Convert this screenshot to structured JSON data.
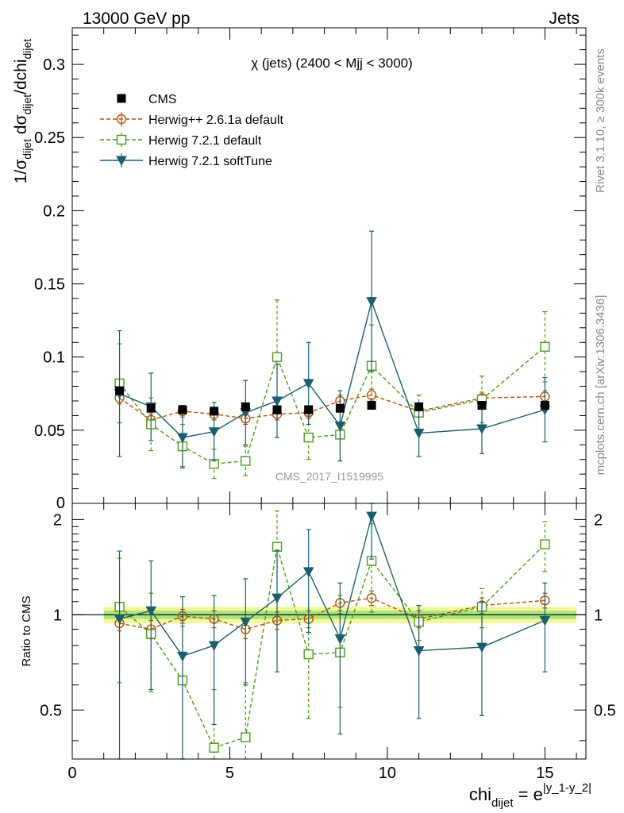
{
  "header": {
    "left": "13000 GeV pp",
    "right": "Jets"
  },
  "side_labels": {
    "rivet": "Rivet 3.1.10, ≥ 300k events",
    "mcplots": "mcplots.cern.ch [arXiv:1306.3436]"
  },
  "chart_data": {
    "type": "line",
    "title": "χ (jets) (2400 < Mjj < 3000)",
    "watermark": "CMS_2017_I1519995",
    "ylabel": {
      "pre": "1/σ",
      "sub1": "dijet",
      "mid": " dσ",
      "sub2": "dijet",
      "post": "/dchi",
      "sub3": "dijet"
    },
    "xlabel": {
      "base": "chi",
      "sub": "dijet",
      "eq": " = e",
      "sup": "|y_1-y_2|"
    },
    "ratio_ylabel": "Ratio to CMS",
    "xlim": [
      0,
      16.3
    ],
    "ylim": [
      0,
      0.325
    ],
    "ratio_ylim": [
      0.35,
      2.25
    ],
    "x_ticks": [
      0,
      5,
      10,
      15
    ],
    "y_ticks": [
      0.05,
      0.1,
      0.15,
      0.2,
      0.25,
      0.3
    ],
    "y_tick_labels": [
      "0.05",
      "0.1",
      "0.15",
      "0.2",
      "0.25",
      "0.3"
    ],
    "y_zero_label": "0",
    "ratio_ticks": [
      0.5,
      1,
      2
    ],
    "ratio_tick_labels": [
      "0.5",
      "1",
      "2"
    ],
    "x": [
      1.5,
      2.5,
      3.5,
      4.5,
      5.5,
      6.5,
      7.5,
      8.5,
      9.5,
      11,
      13,
      15
    ],
    "bins": [
      [
        1,
        2
      ],
      [
        2,
        3
      ],
      [
        3,
        4
      ],
      [
        4,
        5
      ],
      [
        5,
        6
      ],
      [
        6,
        7
      ],
      [
        7,
        8
      ],
      [
        8,
        9
      ],
      [
        9,
        10
      ],
      [
        10,
        12
      ],
      [
        12,
        14
      ],
      [
        14,
        16
      ]
    ],
    "cms": {
      "name": "CMS",
      "values": [
        0.077,
        0.065,
        0.064,
        0.063,
        0.066,
        0.064,
        0.064,
        0.065,
        0.067,
        0.066,
        0.067,
        0.067
      ],
      "err": [
        0.003,
        0.003,
        0.003,
        0.003,
        0.003,
        0.003,
        0.003,
        0.003,
        0.003,
        0.003,
        0.003,
        0.003
      ]
    },
    "band": {
      "inner": 0.03,
      "outer": 0.06
    },
    "series": [
      {
        "name": "Herwig++ 2.6.1a default",
        "color": "#b45309",
        "marker": "circle",
        "dashed": true,
        "values": [
          0.072,
          0.057,
          0.063,
          0.061,
          0.058,
          0.061,
          0.062,
          0.07,
          0.074,
          0.063,
          0.072,
          0.073
        ],
        "err": [
          0.004,
          0.004,
          0.004,
          0.004,
          0.004,
          0.004,
          0.004,
          0.004,
          0.004,
          0.004,
          0.004,
          0.004
        ],
        "ratio": [
          0.94,
          0.9,
          0.99,
          0.97,
          0.9,
          0.96,
          0.97,
          1.09,
          1.13,
          0.97,
          1.07,
          1.11
        ],
        "ratio_err": [
          0.05,
          0.06,
          0.05,
          0.06,
          0.06,
          0.06,
          0.06,
          0.06,
          0.06,
          0.06,
          0.06,
          0.06
        ]
      },
      {
        "name": "Herwig 7.2.1 default",
        "color": "#4d9a1c",
        "marker": "square",
        "dashed": true,
        "values": [
          0.082,
          0.054,
          0.039,
          0.027,
          0.029,
          0.1,
          0.045,
          0.047,
          0.094,
          0.062,
          0.071,
          0.107
        ],
        "err": [
          0.027,
          0.018,
          0.015,
          0.01,
          0.01,
          0.039,
          0.015,
          0.018,
          0.028,
          0.012,
          0.016,
          0.024
        ],
        "ratio": [
          1.06,
          0.87,
          0.62,
          0.38,
          0.41,
          1.64,
          0.75,
          0.76,
          1.48,
          0.95,
          1.06,
          1.67
        ],
        "ratio_err": [
          0.45,
          0.3,
          0.3,
          0.2,
          0.2,
          0.49,
          0.28,
          0.25,
          0.46,
          0.12,
          0.15,
          0.3
        ]
      },
      {
        "name": "Herwig 7.2.1 softTune",
        "color": "#1d5e6e",
        "marker": "triangle",
        "dashed": false,
        "values": [
          0.075,
          0.066,
          0.045,
          0.049,
          0.062,
          0.07,
          0.082,
          0.053,
          0.138,
          0.048,
          0.051,
          0.064
        ],
        "err": [
          0.043,
          0.023,
          0.02,
          0.02,
          0.022,
          0.025,
          0.028,
          0.024,
          0.048,
          0.016,
          0.017,
          0.022
        ],
        "ratio": [
          0.97,
          1.03,
          0.74,
          0.8,
          0.95,
          1.13,
          1.37,
          0.84,
          2.05,
          0.77,
          0.79,
          0.96
        ],
        "ratio_err": [
          0.62,
          0.45,
          0.4,
          0.35,
          0.35,
          0.47,
          0.49,
          0.42,
          0.55,
          0.3,
          0.31,
          0.3
        ]
      }
    ]
  }
}
